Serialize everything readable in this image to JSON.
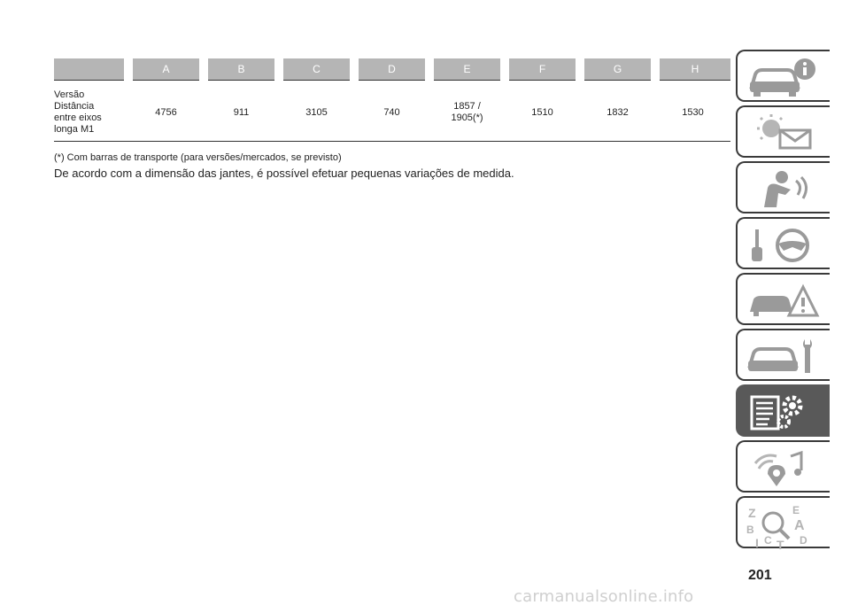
{
  "table": {
    "headers": [
      "",
      "A",
      "B",
      "C",
      "D",
      "E",
      "F",
      "G",
      "H"
    ],
    "row_label_lines": [
      "Versão",
      "Distância",
      "entre eixos",
      "longa M1"
    ],
    "values": [
      "4756",
      "911",
      "3105",
      "740",
      "1857 /\n1905(*)",
      "1510",
      "1832",
      "1530"
    ]
  },
  "footnote": "(*) Com barras de transporte (para versões/mercados, se previsto)",
  "note": "De acordo com a dimensão das jantes, é possível efetuar pequenas variações de medida.",
  "page_number": "201",
  "watermark": "carmanualsonline.info",
  "sidebar": {
    "tabs": [
      {
        "icon": "car-info-icon",
        "active": false
      },
      {
        "icon": "dashboard-lights-icon",
        "active": false
      },
      {
        "icon": "seat-airbag-icon",
        "active": false
      },
      {
        "icon": "key-steering-wheel-icon",
        "active": false
      },
      {
        "icon": "car-breakdown-icon",
        "active": false
      },
      {
        "icon": "car-service-wrench-icon",
        "active": false
      },
      {
        "icon": "technical-data-gears-icon",
        "active": true
      },
      {
        "icon": "multimedia-icon",
        "active": false
      },
      {
        "icon": "alphabetical-index-icon",
        "active": false
      }
    ],
    "active_color": "#595959"
  },
  "letters": {
    "z": "Z",
    "e": "E",
    "b": "B",
    "a": "A",
    "i": "I",
    "c": "C",
    "t": "T",
    "d": "D"
  }
}
